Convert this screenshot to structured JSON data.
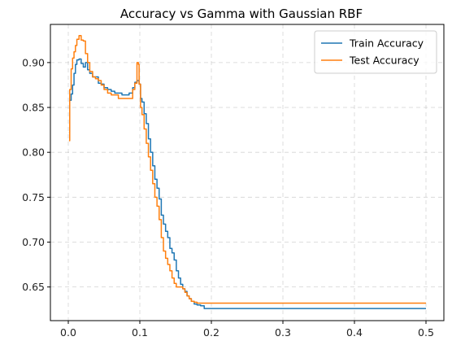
{
  "chart_data": {
    "type": "line",
    "title": "Accuracy vs Gamma with Gaussian RBF",
    "xlabel": "",
    "ylabel": "",
    "xlim": [
      -0.025,
      0.525
    ],
    "ylim": [
      0.6125,
      0.9425
    ],
    "xticks": [
      0.0,
      0.1,
      0.2,
      0.3,
      0.4,
      0.5
    ],
    "xtick_labels": [
      "0.0",
      "0.1",
      "0.2",
      "0.3",
      "0.4",
      "0.5"
    ],
    "yticks": [
      0.65,
      0.7,
      0.75,
      0.8,
      0.85,
      0.9
    ],
    "ytick_labels": [
      "0.65",
      "0.70",
      "0.75",
      "0.80",
      "0.85",
      "0.90"
    ],
    "grid": true,
    "legend_position": "top-right",
    "series": [
      {
        "name": "Train Accuracy",
        "color": "#1f77b4",
        "x": [
          0.001,
          0.002,
          0.004,
          0.006,
          0.008,
          0.01,
          0.012,
          0.015,
          0.018,
          0.021,
          0.024,
          0.027,
          0.03,
          0.034,
          0.038,
          0.042,
          0.046,
          0.05,
          0.055,
          0.06,
          0.065,
          0.07,
          0.075,
          0.08,
          0.085,
          0.09,
          0.093,
          0.096,
          0.099,
          0.101,
          0.103,
          0.106,
          0.109,
          0.112,
          0.115,
          0.118,
          0.121,
          0.124,
          0.127,
          0.13,
          0.133,
          0.136,
          0.139,
          0.142,
          0.145,
          0.148,
          0.151,
          0.154,
          0.157,
          0.16,
          0.163,
          0.166,
          0.169,
          0.172,
          0.176,
          0.18,
          0.185,
          0.19,
          0.195,
          0.2,
          0.25,
          0.3,
          0.35,
          0.4,
          0.45,
          0.5
        ],
        "y": [
          0.822,
          0.858,
          0.865,
          0.875,
          0.888,
          0.898,
          0.903,
          0.904,
          0.899,
          0.895,
          0.9,
          0.892,
          0.888,
          0.884,
          0.884,
          0.877,
          0.876,
          0.872,
          0.87,
          0.868,
          0.866,
          0.866,
          0.864,
          0.864,
          0.866,
          0.872,
          0.878,
          0.88,
          0.876,
          0.86,
          0.856,
          0.843,
          0.832,
          0.815,
          0.8,
          0.785,
          0.77,
          0.76,
          0.748,
          0.73,
          0.72,
          0.712,
          0.705,
          0.693,
          0.688,
          0.68,
          0.668,
          0.66,
          0.653,
          0.648,
          0.645,
          0.64,
          0.637,
          0.634,
          0.631,
          0.63,
          0.629,
          0.626,
          0.626,
          0.626,
          0.626,
          0.626,
          0.626,
          0.626,
          0.626,
          0.626
        ]
      },
      {
        "name": "Test Accuracy",
        "color": "#ff7f0e",
        "x": [
          0.001,
          0.002,
          0.004,
          0.006,
          0.008,
          0.01,
          0.012,
          0.015,
          0.018,
          0.021,
          0.024,
          0.027,
          0.03,
          0.034,
          0.038,
          0.042,
          0.046,
          0.05,
          0.055,
          0.06,
          0.065,
          0.07,
          0.075,
          0.08,
          0.085,
          0.09,
          0.093,
          0.096,
          0.098,
          0.099,
          0.101,
          0.103,
          0.106,
          0.109,
          0.112,
          0.115,
          0.118,
          0.121,
          0.124,
          0.127,
          0.13,
          0.133,
          0.136,
          0.139,
          0.142,
          0.145,
          0.148,
          0.151,
          0.154,
          0.157,
          0.16,
          0.163,
          0.166,
          0.169,
          0.172,
          0.176,
          0.18,
          0.185,
          0.19,
          0.195,
          0.2,
          0.25,
          0.3,
          0.35,
          0.4,
          0.45,
          0.5
        ],
        "y": [
          0.813,
          0.87,
          0.893,
          0.905,
          0.912,
          0.919,
          0.926,
          0.93,
          0.925,
          0.924,
          0.91,
          0.9,
          0.89,
          0.884,
          0.882,
          0.88,
          0.875,
          0.87,
          0.866,
          0.864,
          0.864,
          0.86,
          0.86,
          0.86,
          0.86,
          0.87,
          0.877,
          0.9,
          0.898,
          0.876,
          0.85,
          0.842,
          0.826,
          0.81,
          0.795,
          0.78,
          0.765,
          0.75,
          0.74,
          0.725,
          0.705,
          0.69,
          0.682,
          0.675,
          0.668,
          0.66,
          0.654,
          0.65,
          0.65,
          0.65,
          0.648,
          0.644,
          0.64,
          0.637,
          0.634,
          0.633,
          0.632,
          0.632,
          0.632,
          0.632,
          0.632,
          0.632,
          0.632,
          0.632,
          0.632,
          0.632,
          0.632
        ]
      }
    ]
  }
}
